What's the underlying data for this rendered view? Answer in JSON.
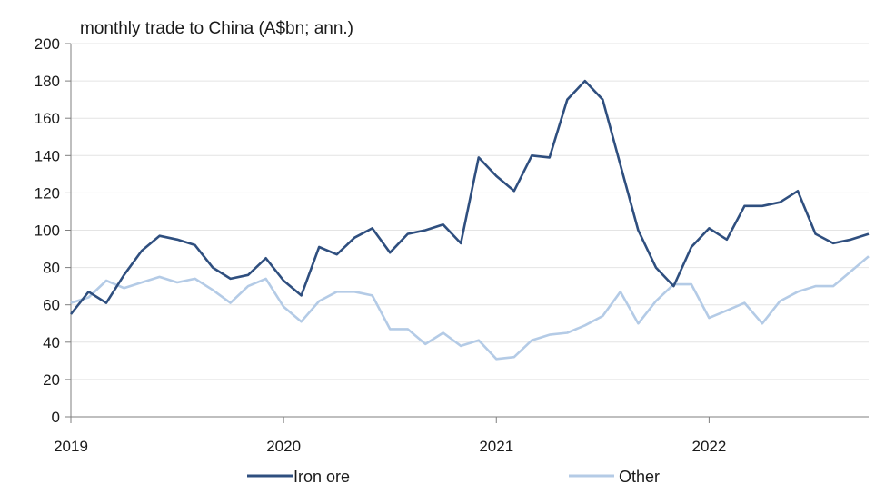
{
  "chart_data": {
    "type": "line",
    "title": "monthly trade to China (A$bn; ann.)",
    "xlabel": "",
    "ylabel": "",
    "ylim": [
      0,
      200
    ],
    "yticks": [
      0,
      20,
      40,
      60,
      80,
      100,
      120,
      140,
      160,
      180,
      200
    ],
    "xlim": [
      "2019-01",
      "2022-10"
    ],
    "xticks": [
      {
        "label": "2019",
        "x": "2019-01"
      },
      {
        "label": "2020",
        "x": "2020-01"
      },
      {
        "label": "2021",
        "x": "2021-01"
      },
      {
        "label": "2022",
        "x": "2022-01"
      }
    ],
    "grid": true,
    "legend": "bottom",
    "x": [
      "2019-01",
      "2019-02",
      "2019-03",
      "2019-04",
      "2019-05",
      "2019-06",
      "2019-07",
      "2019-08",
      "2019-09",
      "2019-10",
      "2019-11",
      "2019-12",
      "2020-01",
      "2020-02",
      "2020-03",
      "2020-04",
      "2020-05",
      "2020-06",
      "2020-07",
      "2020-08",
      "2020-09",
      "2020-10",
      "2020-11",
      "2020-12",
      "2021-01",
      "2021-02",
      "2021-03",
      "2021-04",
      "2021-05",
      "2021-06",
      "2021-07",
      "2021-08",
      "2021-09",
      "2021-10",
      "2021-11",
      "2021-12",
      "2022-01",
      "2022-02",
      "2022-03",
      "2022-04",
      "2022-05",
      "2022-06",
      "2022-07",
      "2022-08",
      "2022-09",
      "2022-10"
    ],
    "series": [
      {
        "name": "Iron ore",
        "color": "#2f4f7f",
        "values": [
          55,
          67,
          61,
          76,
          89,
          97,
          95,
          92,
          80,
          74,
          76,
          85,
          73,
          65,
          91,
          87,
          96,
          101,
          88,
          98,
          100,
          103,
          93,
          139,
          129,
          121,
          140,
          139,
          170,
          180,
          170,
          135,
          100,
          80,
          70,
          91,
          101,
          95,
          113,
          113,
          115,
          121,
          98,
          93,
          95,
          98
        ]
      },
      {
        "name": "Other",
        "color": "#b4cbe6",
        "values": [
          61,
          64,
          73,
          69,
          72,
          75,
          72,
          74,
          68,
          61,
          70,
          74,
          59,
          51,
          62,
          67,
          67,
          65,
          47,
          47,
          39,
          45,
          38,
          41,
          31,
          32,
          41,
          44,
          45,
          49,
          54,
          67,
          50,
          62,
          71,
          71,
          53,
          57,
          61,
          50,
          62,
          67,
          70,
          70,
          78,
          86
        ]
      }
    ]
  }
}
